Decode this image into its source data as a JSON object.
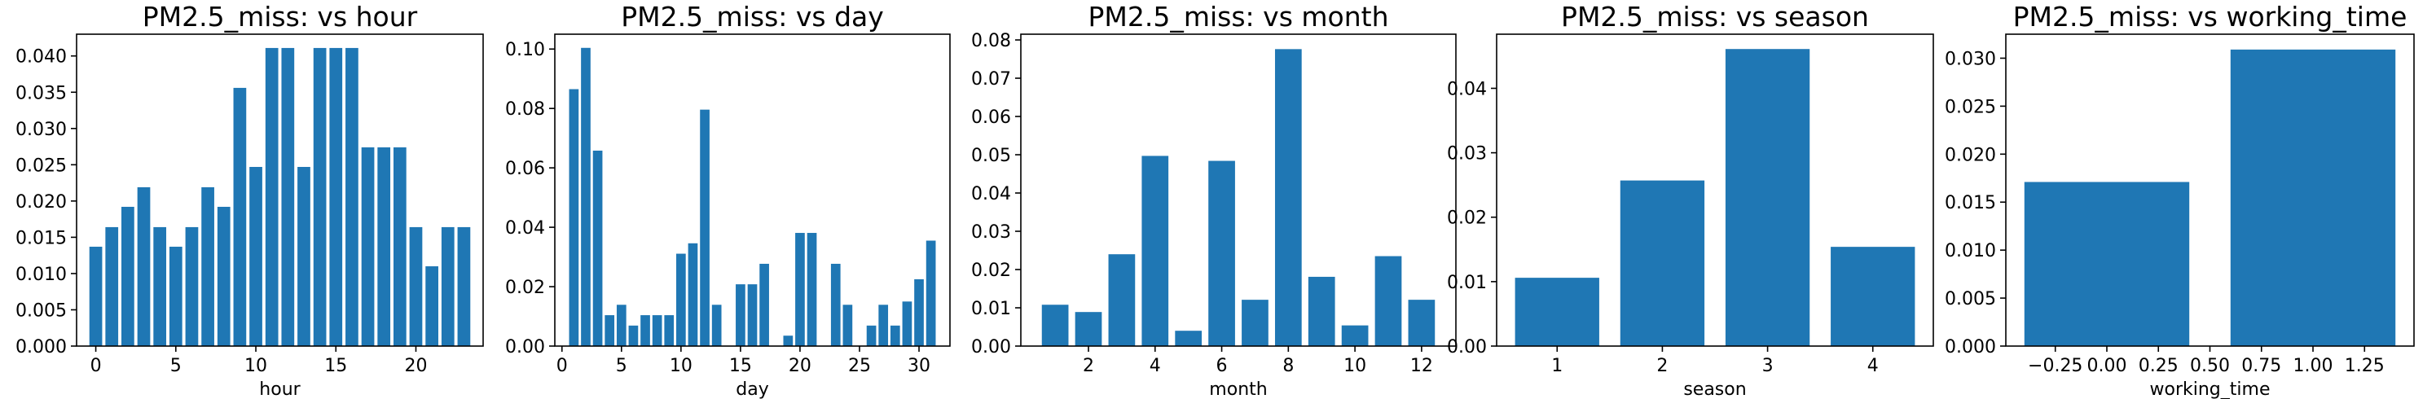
{
  "chart_data": [
    {
      "type": "bar",
      "title": "PM2.5_miss: vs hour",
      "xlabel": "hour",
      "ylabel": "",
      "xlim": [
        -1.2,
        24.2
      ],
      "ylim": [
        0,
        0.043
      ],
      "bar_width": 0.8,
      "x": [
        0,
        1,
        2,
        3,
        4,
        5,
        6,
        7,
        8,
        9,
        10,
        11,
        12,
        13,
        14,
        15,
        16,
        17,
        18,
        19,
        20,
        21,
        22,
        23
      ],
      "values": [
        0.0137,
        0.0164,
        0.0192,
        0.0219,
        0.0164,
        0.0137,
        0.0164,
        0.0219,
        0.0192,
        0.0356,
        0.0247,
        0.0411,
        0.0411,
        0.0247,
        0.0411,
        0.0411,
        0.0411,
        0.0274,
        0.0274,
        0.0274,
        0.0164,
        0.011,
        0.0164,
        0.0164
      ],
      "xticks": [
        0,
        5,
        10,
        15,
        20
      ],
      "xtick_labels": [
        "0",
        "5",
        "10",
        "15",
        "20"
      ],
      "yticks": [
        0,
        0.005,
        0.01,
        0.015,
        0.02,
        0.025,
        0.03,
        0.035,
        0.04
      ],
      "ytick_labels": [
        "0.000",
        "0.005",
        "0.010",
        "0.015",
        "0.020",
        "0.025",
        "0.030",
        "0.035",
        "0.040"
      ],
      "color": "#1f77b4",
      "grid": false
    },
    {
      "type": "bar",
      "title": "PM2.5_miss: vs day",
      "xlabel": "day",
      "ylabel": "",
      "xlim": [
        -0.6,
        32.6
      ],
      "ylim": [
        0,
        0.105
      ],
      "bar_width": 0.8,
      "x": [
        1,
        2,
        3,
        4,
        5,
        6,
        7,
        8,
        9,
        10,
        11,
        12,
        13,
        14,
        15,
        16,
        17,
        18,
        19,
        20,
        21,
        22,
        23,
        24,
        25,
        26,
        27,
        28,
        29,
        30,
        31
      ],
      "values": [
        0.0865,
        0.1004,
        0.0658,
        0.0104,
        0.0139,
        0.0069,
        0.0104,
        0.0104,
        0.0104,
        0.0311,
        0.0346,
        0.0796,
        0.0139,
        0.0,
        0.0208,
        0.0208,
        0.0277,
        0.0,
        0.0035,
        0.0381,
        0.0381,
        0.0,
        0.0277,
        0.0139,
        0.0,
        0.0069,
        0.0139,
        0.0069,
        0.015,
        0.0225,
        0.0355
      ],
      "xticks": [
        0,
        5,
        10,
        15,
        20,
        25,
        30
      ],
      "xtick_labels": [
        "0",
        "5",
        "10",
        "15",
        "20",
        "25",
        "30"
      ],
      "yticks": [
        0,
        0.02,
        0.04,
        0.06,
        0.08,
        0.1
      ],
      "ytick_labels": [
        "0.00",
        "0.02",
        "0.04",
        "0.06",
        "0.08",
        "0.10"
      ],
      "color": "#1f77b4",
      "grid": false
    },
    {
      "type": "bar",
      "title": "PM2.5_miss: vs month",
      "xlabel": "month",
      "ylabel": "",
      "xlim": [
        -0.03,
        13.03
      ],
      "ylim": [
        0,
        0.0815
      ],
      "bar_width": 0.8,
      "x": [
        1,
        2,
        3,
        4,
        5,
        6,
        7,
        8,
        9,
        10,
        11,
        12
      ],
      "values": [
        0.0108,
        0.0089,
        0.024,
        0.0497,
        0.004,
        0.0484,
        0.0121,
        0.0776,
        0.0181,
        0.0054,
        0.0235,
        0.0121
      ],
      "xticks": [
        2,
        4,
        6,
        8,
        10,
        12
      ],
      "xtick_labels": [
        "2",
        "4",
        "6",
        "8",
        "10",
        "12"
      ],
      "yticks": [
        0,
        0.01,
        0.02,
        0.03,
        0.04,
        0.05,
        0.06,
        0.07,
        0.08
      ],
      "ytick_labels": [
        "0.00",
        "0.01",
        "0.02",
        "0.03",
        "0.04",
        "0.05",
        "0.06",
        "0.07",
        "0.08"
      ],
      "color": "#1f77b4",
      "grid": false
    },
    {
      "type": "bar",
      "title": "PM2.5_miss: vs season",
      "xlabel": "season",
      "ylabel": "",
      "xlim": [
        0.425,
        4.575
      ],
      "ylim": [
        0,
        0.0484
      ],
      "bar_width": 0.8,
      "x": [
        1,
        2,
        3,
        4
      ],
      "values": [
        0.0106,
        0.0257,
        0.0461,
        0.0154
      ],
      "xticks": [
        1,
        2,
        3,
        4
      ],
      "xtick_labels": [
        "1",
        "2",
        "3",
        "4"
      ],
      "yticks": [
        0,
        0.01,
        0.02,
        0.03,
        0.04
      ],
      "ytick_labels": [
        "0.00",
        "0.01",
        "0.02",
        "0.03",
        "0.04"
      ],
      "color": "#1f77b4",
      "grid": false
    },
    {
      "type": "bar",
      "title": "PM2.5_miss: vs working_time",
      "xlabel": "working_time",
      "ylabel": "",
      "xlim": [
        -0.49,
        1.49
      ],
      "ylim": [
        0,
        0.0325
      ],
      "bar_width": 0.8,
      "x": [
        0,
        1
      ],
      "values": [
        0.0171,
        0.0309
      ],
      "xticks": [
        -0.25,
        0,
        0.25,
        0.5,
        0.75,
        1,
        1.25
      ],
      "xtick_labels": [
        "−0.25",
        "0.00",
        "0.25",
        "0.50",
        "0.75",
        "1.00",
        "1.25"
      ],
      "yticks": [
        0,
        0.005,
        0.01,
        0.015,
        0.02,
        0.025,
        0.03
      ],
      "ytick_labels": [
        "0.000",
        "0.005",
        "0.010",
        "0.015",
        "0.020",
        "0.025",
        "0.030"
      ],
      "color": "#1f77b4",
      "grid": false
    }
  ]
}
